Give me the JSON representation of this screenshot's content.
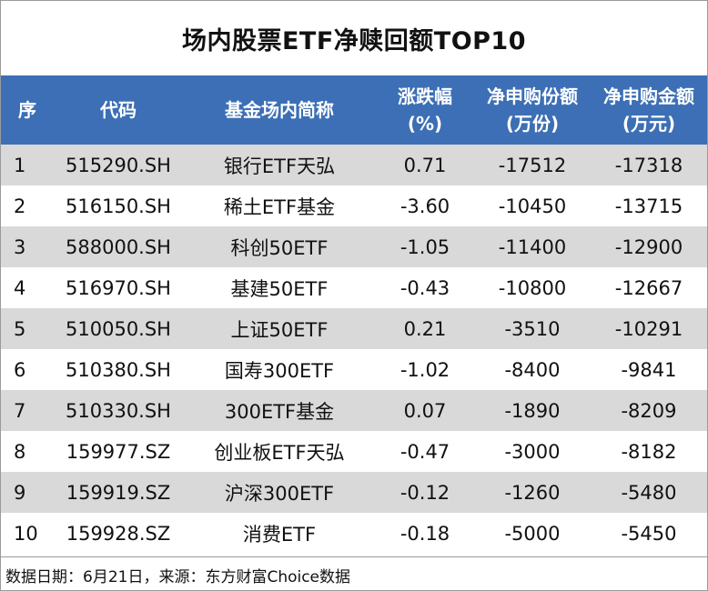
{
  "title": "场内股票ETF净赎回额TOP10",
  "headers": [
    {
      "line1": "序",
      "line2": ""
    },
    {
      "line1": "代码",
      "line2": ""
    },
    {
      "line1": "基金场内简称",
      "line2": ""
    },
    {
      "line1": "涨跌幅",
      "line2": "(%)"
    },
    {
      "line1": "净申购份额",
      "line2": "(万份)"
    },
    {
      "line1": "净申购金额",
      "line2": "(万元)"
    }
  ],
  "rows": [
    {
      "seq": "1",
      "code": "515290.SH",
      "name": "银行ETF天弘",
      "change": "0.71",
      "shares": "-17512",
      "amount": "-17318"
    },
    {
      "seq": "2",
      "code": "516150.SH",
      "name": "稀土ETF基金",
      "change": "-3.60",
      "shares": "-10450",
      "amount": "-13715"
    },
    {
      "seq": "3",
      "code": "588000.SH",
      "name": "科创50ETF",
      "change": "-1.05",
      "shares": "-11400",
      "amount": "-12900"
    },
    {
      "seq": "4",
      "code": "516970.SH",
      "name": "基建50ETF",
      "change": "-0.43",
      "shares": "-10800",
      "amount": "-12667"
    },
    {
      "seq": "5",
      "code": "510050.SH",
      "name": "上证50ETF",
      "change": "0.21",
      "shares": "-3510",
      "amount": "-10291"
    },
    {
      "seq": "6",
      "code": "510380.SH",
      "name": "国寿300ETF",
      "change": "-1.02",
      "shares": "-8400",
      "amount": "-9841"
    },
    {
      "seq": "7",
      "code": "510330.SH",
      "name": "300ETF基金",
      "change": "0.07",
      "shares": "-1890",
      "amount": "-8209"
    },
    {
      "seq": "8",
      "code": "159977.SZ",
      "name": "创业板ETF天弘",
      "change": "-0.47",
      "shares": "-3000",
      "amount": "-8182"
    },
    {
      "seq": "9",
      "code": "159919.SZ",
      "name": "沪深300ETF",
      "change": "-0.12",
      "shares": "-1260",
      "amount": "-5480"
    },
    {
      "seq": "10",
      "code": "159928.SZ",
      "name": "消费ETF",
      "change": "-0.18",
      "shares": "-5000",
      "amount": "-5450"
    }
  ],
  "footer": "数据日期：6月21日，来源：东方财富Choice数据",
  "colors": {
    "header_bg": "#3c6fb5",
    "stripe": "#d9d9d9"
  }
}
